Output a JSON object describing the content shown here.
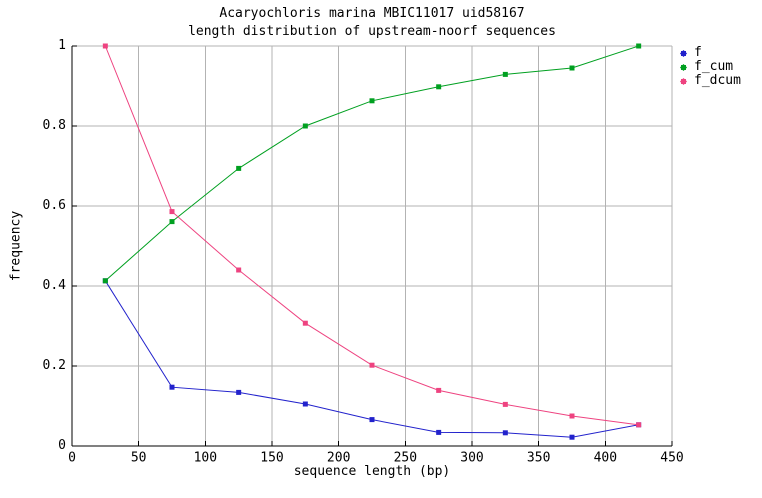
{
  "title": {
    "line1": "Acaryochloris marina MBIC11017 uid58167",
    "line2": "length distribution of upstream-noorf sequences"
  },
  "axes": {
    "x_label": "sequence length (bp)",
    "y_label": "frequency"
  },
  "legend": {
    "position": "outside-top-right",
    "items": [
      {
        "label": "f",
        "color": "#2222cc"
      },
      {
        "label": "f_cum",
        "color": "#00a020"
      },
      {
        "label": "f_dcum",
        "color": "#ee4380"
      }
    ]
  },
  "colors": {
    "background": "#ffffff",
    "grid": "#b3b3b3",
    "axis": "#000000",
    "text": "#000000"
  },
  "chart_data": {
    "type": "line",
    "title": "Acaryochloris marina MBIC11017 uid58167 — length distribution of upstream-noorf sequences",
    "xlabel": "sequence length (bp)",
    "ylabel": "frequency",
    "xlim": [
      0,
      450
    ],
    "ylim": [
      0,
      1
    ],
    "xticks": [
      0,
      50,
      100,
      150,
      200,
      250,
      300,
      350,
      400,
      450
    ],
    "yticks": [
      0,
      0.2,
      0.4,
      0.6,
      0.8,
      1
    ],
    "grid": true,
    "marker": "square",
    "legend_position": "outside-top-right",
    "x": [
      25,
      75,
      125,
      175,
      225,
      275,
      325,
      375,
      425
    ],
    "series": [
      {
        "name": "f",
        "color": "#2222cc",
        "values": [
          0.413,
          0.147,
          0.134,
          0.105,
          0.066,
          0.034,
          0.033,
          0.022,
          0.053
        ]
      },
      {
        "name": "f_cum",
        "color": "#00a020",
        "values": [
          0.413,
          0.561,
          0.694,
          0.8,
          0.863,
          0.898,
          0.929,
          0.945,
          1.0
        ]
      },
      {
        "name": "f_dcum",
        "color": "#ee4380",
        "values": [
          1.0,
          0.586,
          0.44,
          0.307,
          0.202,
          0.139,
          0.104,
          0.075,
          0.053
        ]
      }
    ]
  }
}
